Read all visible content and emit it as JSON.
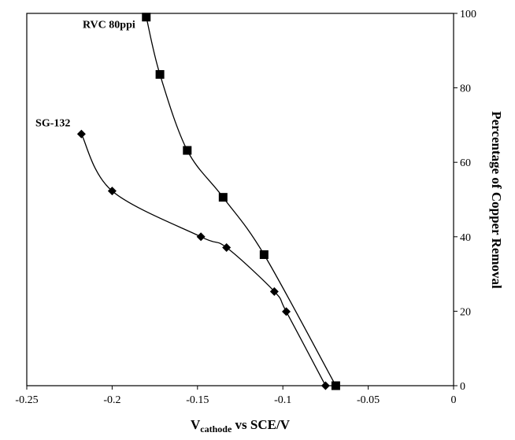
{
  "chart_data": {
    "type": "scatter",
    "title": "",
    "xlabel": {
      "main": "V",
      "sub": "cathode",
      "rest": " vs SCE/V"
    },
    "ylabel": "Percentage of Copper Removal",
    "xlim": [
      -0.25,
      0
    ],
    "ylim": [
      0,
      100
    ],
    "x_ticks": [
      -0.25,
      -0.2,
      -0.15,
      -0.1,
      -0.05,
      0
    ],
    "x_tick_labels": [
      "-0.25",
      "-0.2",
      "-0.15",
      "-0.1",
      "-0.05",
      "0"
    ],
    "y_ticks": [
      0,
      20,
      40,
      60,
      80,
      100
    ],
    "y_tick_labels": [
      "0",
      "20",
      "40",
      "60",
      "80",
      "100"
    ],
    "y_axis_side": "right",
    "grid": false,
    "legend": "none",
    "series": [
      {
        "name": "RVC 80ppi",
        "marker": "square",
        "color": "#000000",
        "x": [
          -0.18,
          -0.172,
          -0.156,
          -0.135,
          -0.111,
          -0.069
        ],
        "y": [
          99.0,
          83.6,
          63.2,
          50.6,
          35.2,
          0.0
        ]
      },
      {
        "name": "SG-132",
        "marker": "diamond",
        "color": "#000000",
        "x": [
          -0.218,
          -0.2,
          -0.148,
          -0.133,
          -0.105,
          -0.098,
          -0.075
        ],
        "y": [
          67.6,
          52.3,
          40.0,
          37.1,
          25.3,
          19.9,
          0.0
        ]
      }
    ]
  }
}
